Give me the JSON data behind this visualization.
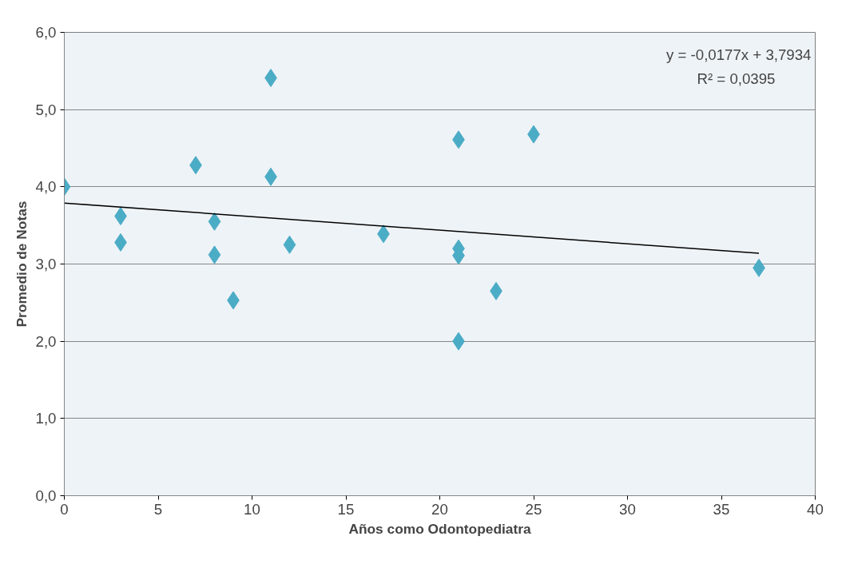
{
  "chart_data": {
    "type": "scatter",
    "xlabel": "Años como Odontopediatra",
    "ylabel": "Promedio de Notas",
    "grid": "y",
    "xlim": [
      0,
      40
    ],
    "xticks": [
      0,
      5,
      10,
      15,
      20,
      25,
      30,
      35,
      40
    ],
    "ylim": [
      0,
      6
    ],
    "yticks": [
      {
        "value": 0,
        "label": "0,0"
      },
      {
        "value": 1,
        "label": "1,0"
      },
      {
        "value": 2,
        "label": "2,0"
      },
      {
        "value": 3,
        "label": "3,0"
      },
      {
        "value": 4,
        "label": "4,0"
      },
      {
        "value": 5,
        "label": "5,0"
      },
      {
        "value": 6,
        "label": "6,0"
      }
    ],
    "series": [
      {
        "marker": "diamond",
        "color": "#4bacc6",
        "x": [
          0,
          3,
          3,
          7,
          8,
          8,
          9,
          11,
          11,
          12,
          17,
          21,
          21,
          21,
          21,
          23,
          25,
          37
        ],
        "values": [
          4.0,
          3.62,
          3.28,
          4.28,
          3.55,
          3.12,
          2.53,
          5.41,
          4.13,
          3.25,
          3.39,
          4.61,
          3.2,
          3.11,
          2.0,
          2.65,
          4.68,
          2.95
        ]
      },
      {
        "type": "line",
        "marker": "none",
        "color": "#000000",
        "x": [
          0,
          37
        ],
        "values": [
          3.79,
          3.14
        ]
      }
    ],
    "annotations": [
      "y = -0,0177x + 3,7934",
      "R² = 0,0395"
    ]
  }
}
